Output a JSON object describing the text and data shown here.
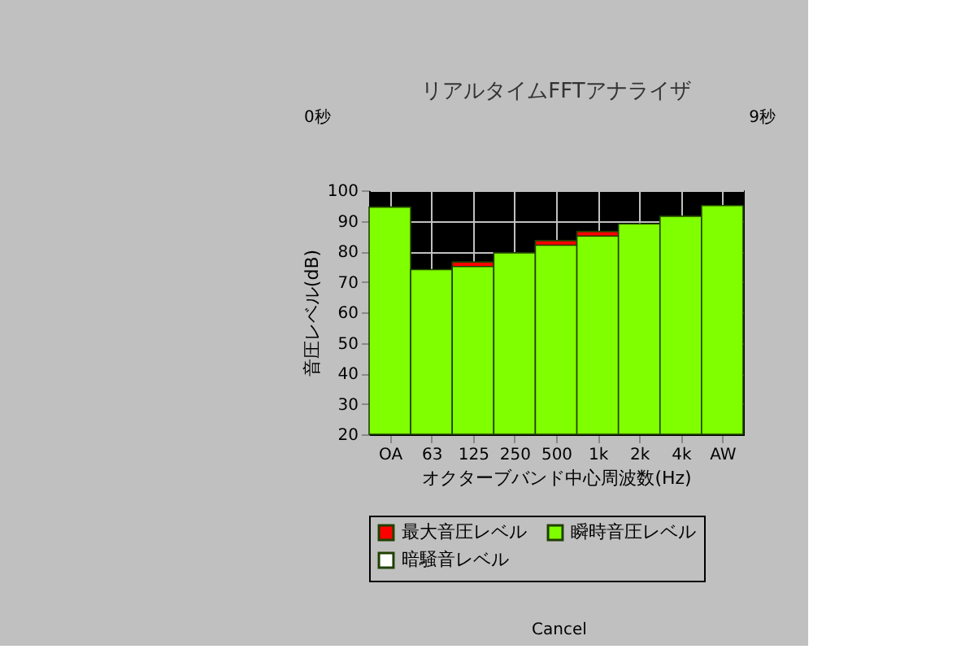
{
  "chart_data": {
    "type": "bar",
    "title": "リアルタイムFFTアナライザ",
    "xlabel": "オクターブバンド中心周波数(Hz)",
    "ylabel": "音圧レベル(dB)",
    "categories": [
      "OA",
      "63",
      "125",
      "250",
      "500",
      "1k",
      "2k",
      "4k",
      "AW"
    ],
    "series": [
      {
        "name": "最大音圧レベル",
        "color": "#ff0000",
        "values": [
          null,
          null,
          76.5,
          null,
          83.5,
          86.5,
          null,
          null,
          null
        ]
      },
      {
        "name": "瞬時音圧レベル",
        "color": "#80ff00",
        "values": [
          94.5,
          74,
          75,
          79.5,
          82,
          85,
          89,
          91.5,
          95
        ]
      },
      {
        "name": "暗騒音レベル",
        "color": "#ffffff",
        "values": [
          null,
          null,
          null,
          null,
          null,
          null,
          null,
          null,
          null
        ]
      }
    ],
    "ylim": [
      20,
      100
    ],
    "yticks": [
      20,
      30,
      40,
      50,
      60,
      70,
      80,
      90,
      100
    ],
    "grid": true,
    "legend": "bottom",
    "annotations": [
      "0秒",
      "9秒",
      "Cancel"
    ]
  }
}
